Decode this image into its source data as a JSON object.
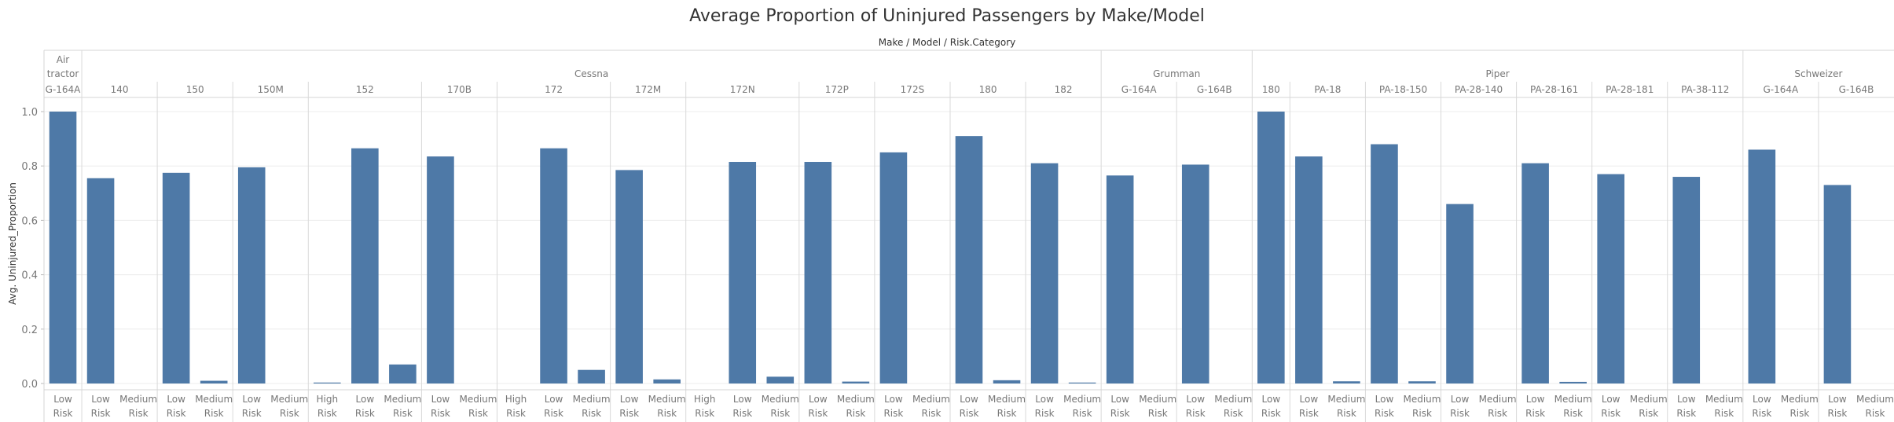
{
  "chart_data": {
    "type": "bar",
    "title": "Average Proportion of Uninjured Passengers by Make/Model",
    "column_header": "Make / Model / Risk.Category",
    "ylabel": "Avg. Uninjured_Proportion",
    "ylim": [
      0,
      1.0
    ],
    "yticks": [
      "0.0",
      "0.2",
      "0.4",
      "0.6",
      "0.8",
      "1.0"
    ],
    "grid": true,
    "bar_color": "#4e79a7",
    "makes": [
      {
        "name": "Air tractor",
        "label_lines": [
          "Air",
          "tractor"
        ],
        "models": [
          {
            "name": "G-164A",
            "bars": [
              {
                "category": [
                  "Low",
                  "Risk"
                ],
                "value": 1.0
              }
            ]
          }
        ]
      },
      {
        "name": "Cessna",
        "label_lines": [
          "Cessna"
        ],
        "models": [
          {
            "name": "140",
            "bars": [
              {
                "category": [
                  "Low",
                  "Risk"
                ],
                "value": 0.755
              },
              {
                "category": [
                  "Medium",
                  "Risk"
                ],
                "value": null
              }
            ]
          },
          {
            "name": "150",
            "bars": [
              {
                "category": [
                  "Low",
                  "Risk"
                ],
                "value": 0.775
              },
              {
                "category": [
                  "Medium",
                  "Risk"
                ],
                "value": 0.01
              }
            ]
          },
          {
            "name": "150M",
            "bars": [
              {
                "category": [
                  "Low",
                  "Risk"
                ],
                "value": 0.795
              },
              {
                "category": [
                  "Medium",
                  "Risk"
                ],
                "value": null
              }
            ]
          },
          {
            "name": "152",
            "bars": [
              {
                "category": [
                  "High",
                  "Risk"
                ],
                "value": 0.003
              },
              {
                "category": [
                  "Low",
                  "Risk"
                ],
                "value": 0.865
              },
              {
                "category": [
                  "Medium",
                  "Risk"
                ],
                "value": 0.07
              }
            ]
          },
          {
            "name": "170B",
            "bars": [
              {
                "category": [
                  "Low",
                  "Risk"
                ],
                "value": 0.835
              },
              {
                "category": [
                  "Medium",
                  "Risk"
                ],
                "value": null
              }
            ]
          },
          {
            "name": "172",
            "bars": [
              {
                "category": [
                  "High",
                  "Risk"
                ],
                "value": null
              },
              {
                "category": [
                  "Low",
                  "Risk"
                ],
                "value": 0.865
              },
              {
                "category": [
                  "Medium",
                  "Risk"
                ],
                "value": 0.05
              }
            ]
          },
          {
            "name": "172M",
            "bars": [
              {
                "category": [
                  "Low",
                  "Risk"
                ],
                "value": 0.785
              },
              {
                "category": [
                  "Medium",
                  "Risk"
                ],
                "value": 0.015
              }
            ]
          },
          {
            "name": "172N",
            "bars": [
              {
                "category": [
                  "High",
                  "Risk"
                ],
                "value": null
              },
              {
                "category": [
                  "Low",
                  "Risk"
                ],
                "value": 0.815
              },
              {
                "category": [
                  "Medium",
                  "Risk"
                ],
                "value": 0.025
              }
            ]
          },
          {
            "name": "172P",
            "bars": [
              {
                "category": [
                  "Low",
                  "Risk"
                ],
                "value": 0.815
              },
              {
                "category": [
                  "Medium",
                  "Risk"
                ],
                "value": 0.007
              }
            ]
          },
          {
            "name": "172S",
            "bars": [
              {
                "category": [
                  "Low",
                  "Risk"
                ],
                "value": 0.85
              },
              {
                "category": [
                  "Medium",
                  "Risk"
                ],
                "value": null
              }
            ]
          },
          {
            "name": "180",
            "bars": [
              {
                "category": [
                  "Low",
                  "Risk"
                ],
                "value": 0.91
              },
              {
                "category": [
                  "Medium",
                  "Risk"
                ],
                "value": 0.012
              }
            ]
          },
          {
            "name": "182",
            "bars": [
              {
                "category": [
                  "Low",
                  "Risk"
                ],
                "value": 0.81
              },
              {
                "category": [
                  "Medium",
                  "Risk"
                ],
                "value": 0.003
              }
            ]
          }
        ]
      },
      {
        "name": "Grumman",
        "label_lines": [
          "Grumman"
        ],
        "models": [
          {
            "name": "G-164A",
            "bars": [
              {
                "category": [
                  "Low",
                  "Risk"
                ],
                "value": 0.765
              },
              {
                "category": [
                  "Medium",
                  "Risk"
                ],
                "value": null
              }
            ]
          },
          {
            "name": "G-164B",
            "bars": [
              {
                "category": [
                  "Low",
                  "Risk"
                ],
                "value": 0.805
              },
              {
                "category": [
                  "Medium",
                  "Risk"
                ],
                "value": null
              }
            ]
          }
        ]
      },
      {
        "name": "Piper",
        "label_lines": [
          "Piper"
        ],
        "models": [
          {
            "name": "180",
            "bars": [
              {
                "category": [
                  "Low",
                  "Risk"
                ],
                "value": 1.0
              }
            ]
          },
          {
            "name": "PA-18",
            "bars": [
              {
                "category": [
                  "Low",
                  "Risk"
                ],
                "value": 0.835
              },
              {
                "category": [
                  "Medium",
                  "Risk"
                ],
                "value": 0.008
              }
            ]
          },
          {
            "name": "PA-18-150",
            "bars": [
              {
                "category": [
                  "Low",
                  "Risk"
                ],
                "value": 0.88
              },
              {
                "category": [
                  "Medium",
                  "Risk"
                ],
                "value": 0.008
              }
            ]
          },
          {
            "name": "PA-28-140",
            "bars": [
              {
                "category": [
                  "Low",
                  "Risk"
                ],
                "value": 0.66
              },
              {
                "category": [
                  "Medium",
                  "Risk"
                ],
                "value": null
              }
            ]
          },
          {
            "name": "PA-28-161",
            "bars": [
              {
                "category": [
                  "Low",
                  "Risk"
                ],
                "value": 0.81
              },
              {
                "category": [
                  "Medium",
                  "Risk"
                ],
                "value": 0.006
              }
            ]
          },
          {
            "name": "PA-28-181",
            "bars": [
              {
                "category": [
                  "Low",
                  "Risk"
                ],
                "value": 0.77
              },
              {
                "category": [
                  "Medium",
                  "Risk"
                ],
                "value": null
              }
            ]
          },
          {
            "name": "PA-38-112",
            "bars": [
              {
                "category": [
                  "Low",
                  "Risk"
                ],
                "value": 0.76
              },
              {
                "category": [
                  "Medium",
                  "Risk"
                ],
                "value": null
              }
            ]
          }
        ]
      },
      {
        "name": "Schweizer",
        "label_lines": [
          "Schweizer"
        ],
        "models": [
          {
            "name": "G-164A",
            "bars": [
              {
                "category": [
                  "Low",
                  "Risk"
                ],
                "value": 0.86
              },
              {
                "category": [
                  "Medium",
                  "Risk"
                ],
                "value": null
              }
            ]
          },
          {
            "name": "G-164B",
            "bars": [
              {
                "category": [
                  "Low",
                  "Risk"
                ],
                "value": 0.73
              },
              {
                "category": [
                  "Medium",
                  "Risk"
                ],
                "value": null
              }
            ]
          }
        ]
      }
    ]
  }
}
